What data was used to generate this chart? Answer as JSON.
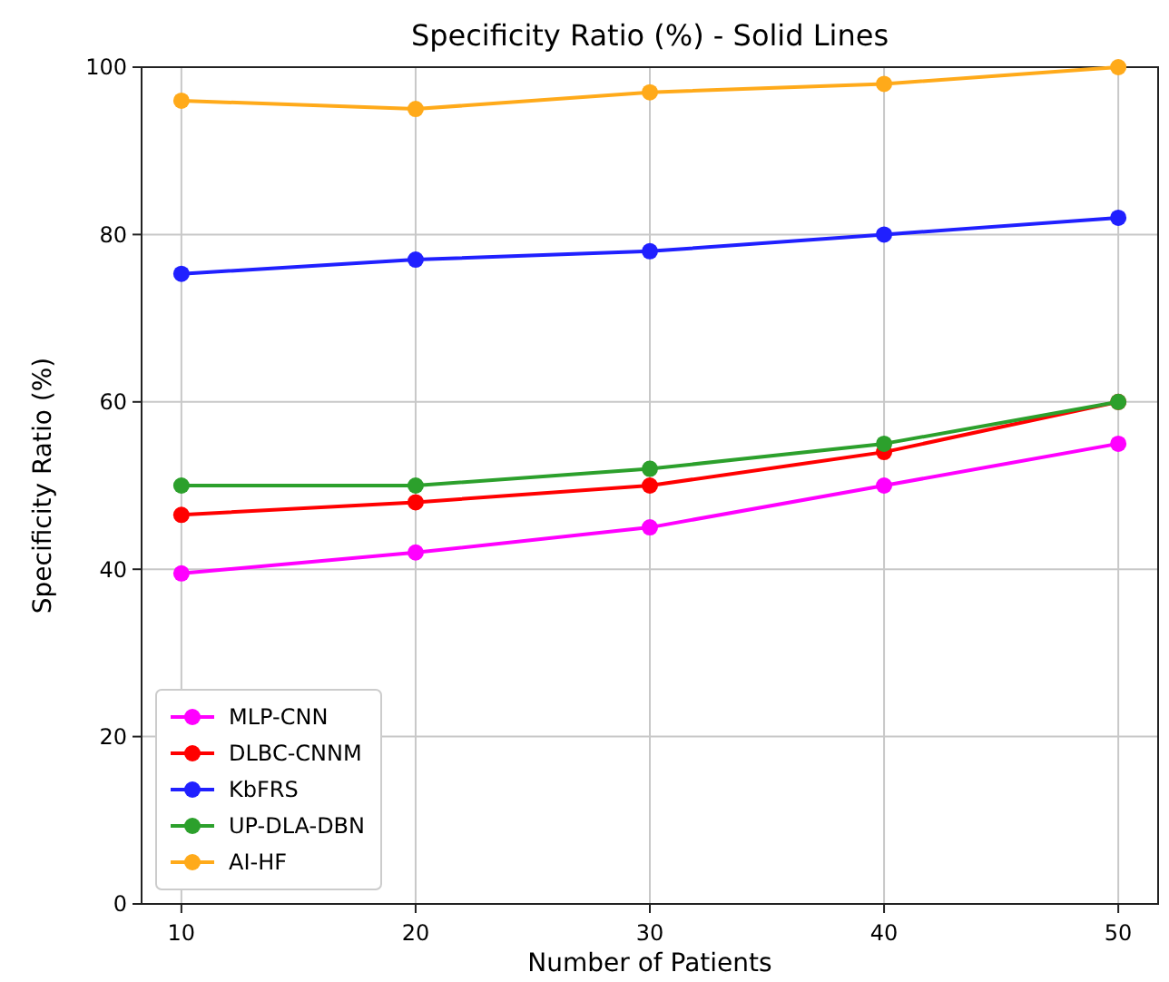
{
  "chart_data": {
    "type": "line",
    "title": "Specificity Ratio (%) - Solid Lines",
    "xlabel": "Number of Patients",
    "ylabel": "Specificity Ratio (%)",
    "x": [
      10,
      20,
      30,
      40,
      50
    ],
    "xlim": [
      8.3,
      51.7
    ],
    "xticks": [
      10,
      20,
      30,
      40,
      50
    ],
    "ylim": [
      0,
      100
    ],
    "yticks": [
      0,
      20,
      40,
      60,
      80,
      100
    ],
    "grid": true,
    "legend": "bottom left",
    "marker": "circle",
    "line_style": "solid",
    "series": [
      {
        "name": "MLP-CNN",
        "color": "#ff00ff",
        "values": [
          39.5,
          42,
          45,
          50,
          55
        ]
      },
      {
        "name": "DLBC-CNNM",
        "color": "#ff0000",
        "values": [
          46.5,
          48,
          50,
          54,
          60
        ]
      },
      {
        "name": "KbFRS",
        "color": "#2020ff",
        "values": [
          75.3,
          77,
          78,
          80,
          82
        ]
      },
      {
        "name": "UP-DLA-DBN",
        "color": "#2ca02c",
        "values": [
          50,
          50,
          52,
          55,
          60
        ]
      },
      {
        "name": "AI-HF",
        "color": "#ffaa1a",
        "values": [
          96,
          95,
          97,
          98,
          100
        ]
      }
    ]
  }
}
